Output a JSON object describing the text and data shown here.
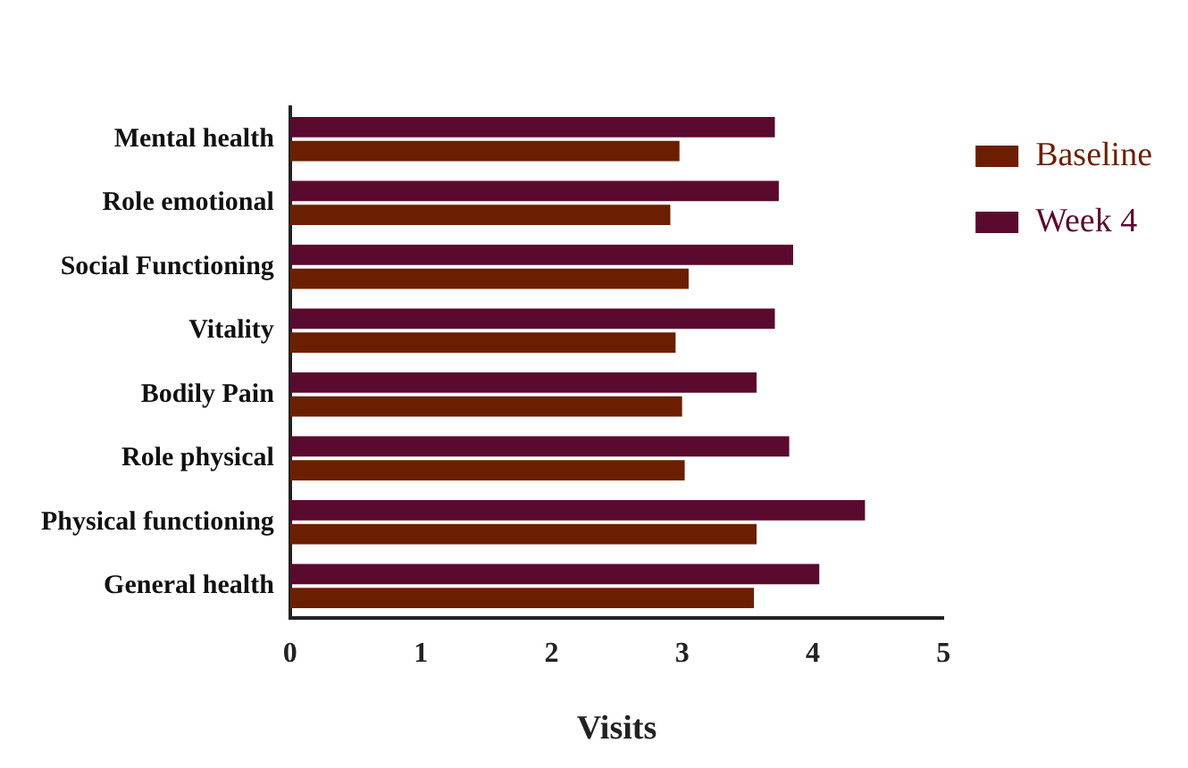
{
  "chart_data": {
    "type": "bar",
    "orientation": "horizontal",
    "xlabel": "Visits",
    "categories": [
      "Mental health",
      "Role emotional",
      "Social Functioning",
      "Vitality",
      "Bodily Pain",
      "Role physical",
      "Physical functioning",
      "General health"
    ],
    "series": [
      {
        "name": "Baseline",
        "color": "#6b1f00",
        "values": [
          2.98,
          2.91,
          3.05,
          2.95,
          3.0,
          3.02,
          3.57,
          3.55
        ]
      },
      {
        "name": "Week 4",
        "color": "#5a0a2e",
        "values": [
          3.71,
          3.74,
          3.85,
          3.71,
          3.57,
          3.82,
          4.4,
          4.05
        ]
      }
    ],
    "xlim": [
      0,
      5
    ],
    "xticks": [
      0,
      1,
      2,
      3,
      4,
      5
    ],
    "grid": false,
    "legend": "top right"
  }
}
